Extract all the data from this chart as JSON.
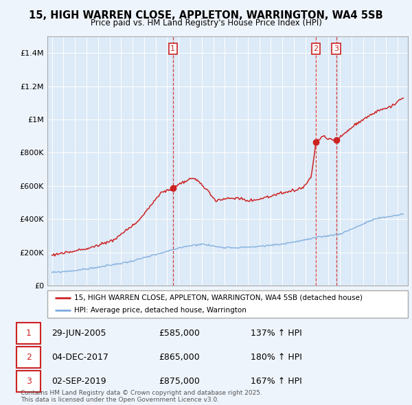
{
  "title": "15, HIGH WARREN CLOSE, APPLETON, WARRINGTON, WA4 5SB",
  "subtitle": "Price paid vs. HM Land Registry's House Price Index (HPI)",
  "hpi_color": "#7aaadd",
  "price_color": "#cc2222",
  "background_color": "#eef4fb",
  "plot_bg_color": "#ddeaf7",
  "grid_color": "#ffffff",
  "ylim": [
    0,
    1500000
  ],
  "yticks": [
    0,
    200000,
    400000,
    600000,
    800000,
    1000000,
    1200000,
    1400000
  ],
  "sale_year_nums": [
    2005.5,
    2017.92,
    2019.67
  ],
  "sale_prices": [
    585000,
    865000,
    875000
  ],
  "sale_labels": [
    "1",
    "2",
    "3"
  ],
  "transaction_info": [
    {
      "label": "1",
      "date": "29-JUN-2005",
      "price": "£585,000",
      "hpi": "137% ↑ HPI"
    },
    {
      "label": "2",
      "date": "04-DEC-2017",
      "price": "£865,000",
      "hpi": "180% ↑ HPI"
    },
    {
      "label": "3",
      "date": "02-SEP-2019",
      "price": "£875,000",
      "hpi": "167% ↑ HPI"
    }
  ],
  "legend_house": "15, HIGH WARREN CLOSE, APPLETON, WARRINGTON, WA4 5SB (detached house)",
  "legend_hpi": "HPI: Average price, detached house, Warrington",
  "footnote": "Contains HM Land Registry data © Crown copyright and database right 2025.\nThis data is licensed under the Open Government Licence v3.0.",
  "hpi_key_years": [
    1995.0,
    1997.0,
    1999.0,
    2001.5,
    2004.0,
    2006.5,
    2008.0,
    2009.5,
    2011.0,
    2013.0,
    2015.0,
    2017.0,
    2018.5,
    2020.0,
    2021.5,
    2023.0,
    2025.5
  ],
  "hpi_key_vals": [
    78000,
    90000,
    110000,
    140000,
    185000,
    235000,
    250000,
    232000,
    228000,
    235000,
    250000,
    275000,
    295000,
    310000,
    355000,
    400000,
    430000
  ],
  "price_key_years": [
    1995.0,
    1996.5,
    1998.5,
    2000.5,
    2002.5,
    2004.5,
    2005.5,
    2006.5,
    2007.3,
    2008.5,
    2009.2,
    2010.0,
    2011.0,
    2012.0,
    2013.0,
    2014.0,
    2015.0,
    2016.0,
    2016.8,
    2017.5,
    2017.92,
    2018.5,
    2019.0,
    2019.67,
    2020.5,
    2021.5,
    2022.5,
    2023.5,
    2024.5,
    2025.3
  ],
  "price_key_vals": [
    185000,
    200000,
    230000,
    280000,
    390000,
    560000,
    585000,
    625000,
    650000,
    575000,
    510000,
    520000,
    530000,
    510000,
    520000,
    540000,
    555000,
    570000,
    590000,
    650000,
    865000,
    900000,
    880000,
    875000,
    920000,
    980000,
    1020000,
    1060000,
    1080000,
    1120000
  ]
}
